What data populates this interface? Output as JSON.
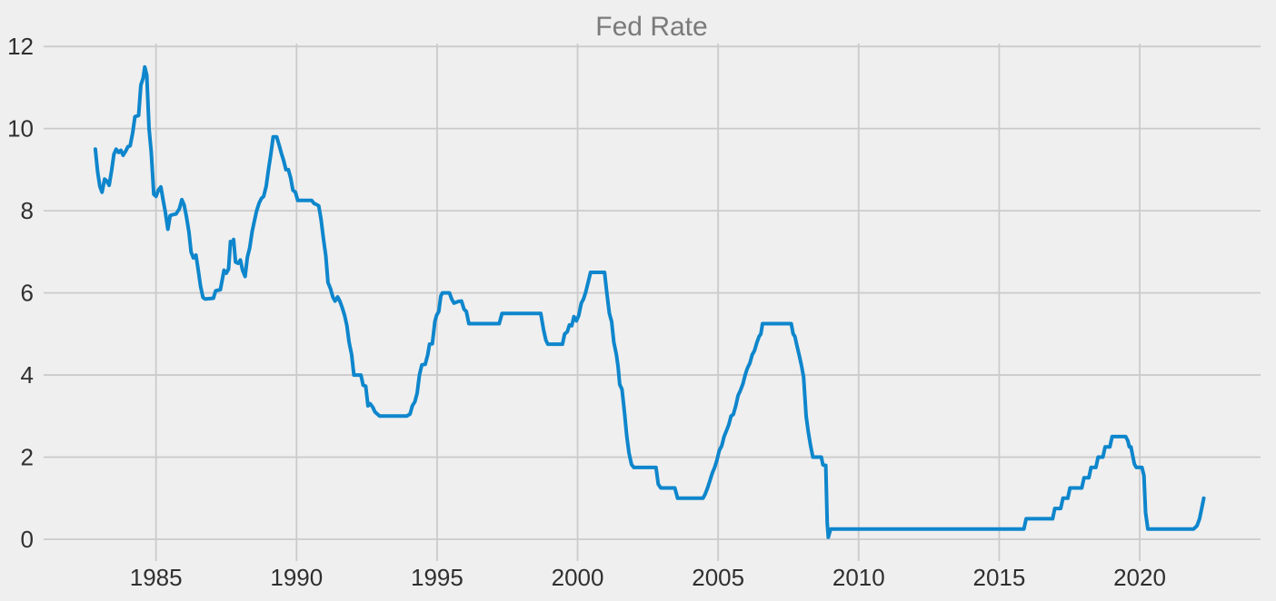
{
  "chart": {
    "title": "Fed Rate"
  },
  "chart_data": {
    "type": "line",
    "title": "Fed Rate",
    "xlabel": "",
    "ylabel": "",
    "x_ticks": [
      1985,
      1990,
      1995,
      2000,
      2005,
      2010,
      2015,
      2020
    ],
    "x_tick_labels": [
      "1985",
      "1990",
      "1995",
      "2000",
      "2005",
      "2010",
      "2015",
      "2020"
    ],
    "y_ticks": [
      0,
      2,
      4,
      6,
      8,
      10,
      12
    ],
    "y_tick_labels": [
      "0",
      "2",
      "4",
      "6",
      "8",
      "10",
      "12"
    ],
    "xlim": [
      1981.0,
      2024.3
    ],
    "ylim": [
      -0.53,
      12.07
    ],
    "grid": true,
    "legend": false,
    "colors": {
      "background": "#efefef",
      "grid": "#cbcbcb",
      "line": "#0e86cc",
      "tick_label": "#2f2f2f",
      "title": "#7a7a7a"
    },
    "series": [
      {
        "name": "Fed Rate",
        "points": [
          [
            1982.84,
            9.5
          ],
          [
            1982.92,
            8.95
          ],
          [
            1983.0,
            8.6
          ],
          [
            1983.08,
            8.45
          ],
          [
            1983.17,
            8.77
          ],
          [
            1983.25,
            8.72
          ],
          [
            1983.33,
            8.62
          ],
          [
            1983.42,
            8.98
          ],
          [
            1983.5,
            9.37
          ],
          [
            1983.58,
            9.5
          ],
          [
            1983.67,
            9.42
          ],
          [
            1983.75,
            9.47
          ],
          [
            1983.83,
            9.35
          ],
          [
            1983.92,
            9.45
          ],
          [
            1984.0,
            9.56
          ],
          [
            1984.08,
            9.58
          ],
          [
            1984.17,
            9.9
          ],
          [
            1984.25,
            10.29
          ],
          [
            1984.38,
            10.32
          ],
          [
            1984.46,
            11.06
          ],
          [
            1984.54,
            11.23
          ],
          [
            1984.6,
            11.5
          ],
          [
            1984.67,
            11.3
          ],
          [
            1984.75,
            10.0
          ],
          [
            1984.83,
            9.43
          ],
          [
            1984.92,
            8.4
          ],
          [
            1985.0,
            8.35
          ],
          [
            1985.08,
            8.5
          ],
          [
            1985.17,
            8.58
          ],
          [
            1985.25,
            8.27
          ],
          [
            1985.33,
            7.97
          ],
          [
            1985.42,
            7.55
          ],
          [
            1985.5,
            7.88
          ],
          [
            1985.58,
            7.9
          ],
          [
            1985.71,
            7.92
          ],
          [
            1985.83,
            8.05
          ],
          [
            1985.92,
            8.27
          ],
          [
            1986.0,
            8.14
          ],
          [
            1986.08,
            7.86
          ],
          [
            1986.17,
            7.48
          ],
          [
            1986.25,
            6.99
          ],
          [
            1986.33,
            6.85
          ],
          [
            1986.42,
            6.92
          ],
          [
            1986.5,
            6.56
          ],
          [
            1986.58,
            6.17
          ],
          [
            1986.67,
            5.89
          ],
          [
            1986.75,
            5.85
          ],
          [
            1987.04,
            5.87
          ],
          [
            1987.12,
            6.05
          ],
          [
            1987.29,
            6.08
          ],
          [
            1987.42,
            6.55
          ],
          [
            1987.5,
            6.48
          ],
          [
            1987.58,
            6.58
          ],
          [
            1987.65,
            7.25
          ],
          [
            1987.71,
            7.2
          ],
          [
            1987.76,
            7.3
          ],
          [
            1987.83,
            6.75
          ],
          [
            1987.92,
            6.72
          ],
          [
            1988.0,
            6.8
          ],
          [
            1988.08,
            6.55
          ],
          [
            1988.17,
            6.4
          ],
          [
            1988.25,
            6.87
          ],
          [
            1988.33,
            7.09
          ],
          [
            1988.42,
            7.5
          ],
          [
            1988.5,
            7.75
          ],
          [
            1988.58,
            8.0
          ],
          [
            1988.67,
            8.19
          ],
          [
            1988.75,
            8.3
          ],
          [
            1988.83,
            8.35
          ],
          [
            1988.92,
            8.6
          ],
          [
            1989.0,
            9.0
          ],
          [
            1989.08,
            9.36
          ],
          [
            1989.17,
            9.8
          ],
          [
            1989.29,
            9.8
          ],
          [
            1989.38,
            9.6
          ],
          [
            1989.46,
            9.4
          ],
          [
            1989.54,
            9.22
          ],
          [
            1989.62,
            9.0
          ],
          [
            1989.71,
            9.0
          ],
          [
            1989.79,
            8.8
          ],
          [
            1989.87,
            8.5
          ],
          [
            1989.96,
            8.45
          ],
          [
            1990.04,
            8.25
          ],
          [
            1990.54,
            8.25
          ],
          [
            1990.62,
            8.18
          ],
          [
            1990.71,
            8.15
          ],
          [
            1990.79,
            8.12
          ],
          [
            1990.87,
            7.8
          ],
          [
            1990.96,
            7.3
          ],
          [
            1991.04,
            6.9
          ],
          [
            1991.12,
            6.25
          ],
          [
            1991.21,
            6.1
          ],
          [
            1991.29,
            5.9
          ],
          [
            1991.37,
            5.8
          ],
          [
            1991.46,
            5.9
          ],
          [
            1991.54,
            5.8
          ],
          [
            1991.62,
            5.65
          ],
          [
            1991.71,
            5.45
          ],
          [
            1991.79,
            5.2
          ],
          [
            1991.87,
            4.8
          ],
          [
            1991.96,
            4.5
          ],
          [
            1992.04,
            4.0
          ],
          [
            1992.29,
            4.0
          ],
          [
            1992.37,
            3.75
          ],
          [
            1992.46,
            3.73
          ],
          [
            1992.54,
            3.25
          ],
          [
            1992.62,
            3.3
          ],
          [
            1992.71,
            3.22
          ],
          [
            1992.79,
            3.1
          ],
          [
            1992.87,
            3.05
          ],
          [
            1992.96,
            3.0
          ],
          [
            1993.92,
            3.0
          ],
          [
            1994.04,
            3.05
          ],
          [
            1994.12,
            3.25
          ],
          [
            1994.21,
            3.35
          ],
          [
            1994.29,
            3.56
          ],
          [
            1994.37,
            4.0
          ],
          [
            1994.46,
            4.25
          ],
          [
            1994.58,
            4.26
          ],
          [
            1994.67,
            4.5
          ],
          [
            1994.73,
            4.75
          ],
          [
            1994.83,
            4.76
          ],
          [
            1994.92,
            5.3
          ],
          [
            1994.98,
            5.45
          ],
          [
            1995.06,
            5.55
          ],
          [
            1995.13,
            5.92
          ],
          [
            1995.19,
            6.0
          ],
          [
            1995.44,
            6.0
          ],
          [
            1995.52,
            5.85
          ],
          [
            1995.6,
            5.75
          ],
          [
            1995.75,
            5.79
          ],
          [
            1995.87,
            5.8
          ],
          [
            1995.96,
            5.6
          ],
          [
            1996.04,
            5.55
          ],
          [
            1996.13,
            5.25
          ],
          [
            1997.21,
            5.25
          ],
          [
            1997.31,
            5.5
          ],
          [
            1998.69,
            5.5
          ],
          [
            1998.79,
            5.1
          ],
          [
            1998.87,
            4.85
          ],
          [
            1998.94,
            4.75
          ],
          [
            1999.46,
            4.75
          ],
          [
            1999.54,
            5.0
          ],
          [
            1999.63,
            5.05
          ],
          [
            1999.71,
            5.22
          ],
          [
            1999.79,
            5.2
          ],
          [
            1999.87,
            5.42
          ],
          [
            1999.96,
            5.32
          ],
          [
            2000.04,
            5.45
          ],
          [
            2000.13,
            5.75
          ],
          [
            2000.21,
            5.85
          ],
          [
            2000.29,
            6.02
          ],
          [
            2000.38,
            6.27
          ],
          [
            2000.46,
            6.5
          ],
          [
            2000.96,
            6.5
          ],
          [
            2001.04,
            6.0
          ],
          [
            2001.13,
            5.5
          ],
          [
            2001.21,
            5.3
          ],
          [
            2001.29,
            4.8
          ],
          [
            2001.38,
            4.5
          ],
          [
            2001.44,
            4.2
          ],
          [
            2001.5,
            3.77
          ],
          [
            2001.58,
            3.65
          ],
          [
            2001.67,
            3.07
          ],
          [
            2001.75,
            2.5
          ],
          [
            2001.83,
            2.1
          ],
          [
            2001.92,
            1.82
          ],
          [
            2002.0,
            1.75
          ],
          [
            2002.79,
            1.75
          ],
          [
            2002.87,
            1.34
          ],
          [
            2002.96,
            1.25
          ],
          [
            2003.46,
            1.25
          ],
          [
            2003.56,
            1.0
          ],
          [
            2004.46,
            1.0
          ],
          [
            2004.54,
            1.1
          ],
          [
            2004.63,
            1.26
          ],
          [
            2004.71,
            1.43
          ],
          [
            2004.79,
            1.61
          ],
          [
            2004.88,
            1.76
          ],
          [
            2004.96,
            1.93
          ],
          [
            2005.04,
            2.16
          ],
          [
            2005.13,
            2.28
          ],
          [
            2005.21,
            2.5
          ],
          [
            2005.29,
            2.63
          ],
          [
            2005.38,
            2.79
          ],
          [
            2005.46,
            3.0
          ],
          [
            2005.54,
            3.04
          ],
          [
            2005.63,
            3.26
          ],
          [
            2005.71,
            3.5
          ],
          [
            2005.79,
            3.62
          ],
          [
            2005.88,
            3.78
          ],
          [
            2005.96,
            4.0
          ],
          [
            2006.04,
            4.16
          ],
          [
            2006.13,
            4.29
          ],
          [
            2006.21,
            4.49
          ],
          [
            2006.29,
            4.59
          ],
          [
            2006.38,
            4.79
          ],
          [
            2006.46,
            4.94
          ],
          [
            2006.52,
            5.0
          ],
          [
            2006.58,
            5.25
          ],
          [
            2007.6,
            5.25
          ],
          [
            2007.67,
            5.0
          ],
          [
            2007.73,
            4.94
          ],
          [
            2007.79,
            4.76
          ],
          [
            2007.88,
            4.5
          ],
          [
            2007.96,
            4.25
          ],
          [
            2008.04,
            3.95
          ],
          [
            2008.13,
            3.0
          ],
          [
            2008.21,
            2.61
          ],
          [
            2008.29,
            2.28
          ],
          [
            2008.37,
            2.0
          ],
          [
            2008.67,
            2.0
          ],
          [
            2008.73,
            1.81
          ],
          [
            2008.83,
            1.8
          ],
          [
            2008.88,
            0.4
          ],
          [
            2008.92,
            0.05
          ],
          [
            2009.0,
            0.25
          ],
          [
            2015.88,
            0.25
          ],
          [
            2015.96,
            0.5
          ],
          [
            2016.9,
            0.5
          ],
          [
            2016.98,
            0.75
          ],
          [
            2017.19,
            0.75
          ],
          [
            2017.27,
            1.0
          ],
          [
            2017.44,
            1.0
          ],
          [
            2017.52,
            1.25
          ],
          [
            2017.94,
            1.25
          ],
          [
            2018.02,
            1.5
          ],
          [
            2018.19,
            1.5
          ],
          [
            2018.27,
            1.75
          ],
          [
            2018.44,
            1.75
          ],
          [
            2018.52,
            2.0
          ],
          [
            2018.69,
            2.0
          ],
          [
            2018.77,
            2.25
          ],
          [
            2018.94,
            2.25
          ],
          [
            2019.02,
            2.5
          ],
          [
            2019.5,
            2.5
          ],
          [
            2019.58,
            2.4
          ],
          [
            2019.63,
            2.25
          ],
          [
            2019.69,
            2.25
          ],
          [
            2019.73,
            2.1
          ],
          [
            2019.81,
            1.83
          ],
          [
            2019.88,
            1.75
          ],
          [
            2020.08,
            1.75
          ],
          [
            2020.15,
            1.55
          ],
          [
            2020.21,
            0.65
          ],
          [
            2020.29,
            0.25
          ],
          [
            2021.92,
            0.25
          ],
          [
            2022.04,
            0.33
          ],
          [
            2022.13,
            0.5
          ],
          [
            2022.21,
            0.77
          ],
          [
            2022.28,
            1.0
          ]
        ]
      }
    ]
  }
}
